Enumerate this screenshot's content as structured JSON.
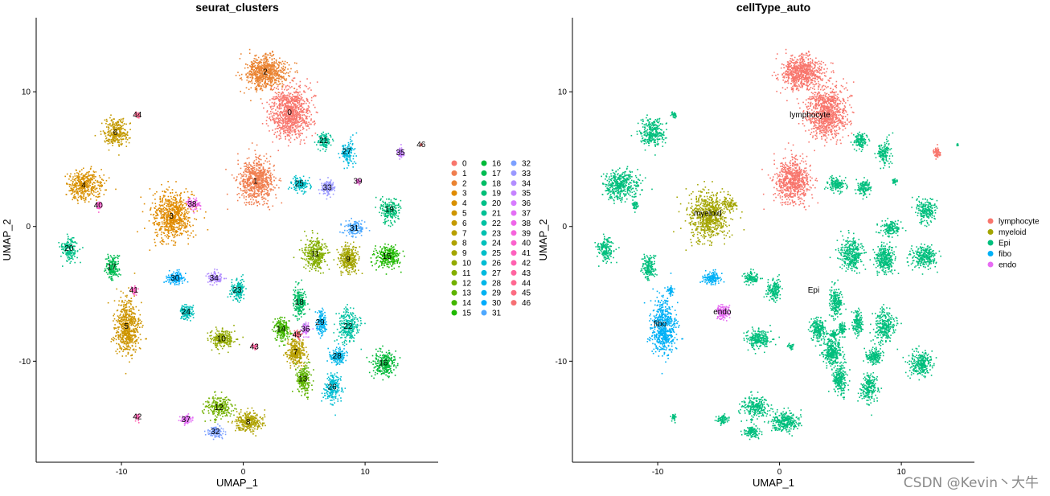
{
  "watermark": "CSDN @Kevin丶大牛",
  "chart_data": [
    {
      "type": "scatter",
      "title": "seurat_clusters",
      "xlabel": "UMAP_1",
      "ylabel": "UMAP_2",
      "xlim": [
        -17,
        16
      ],
      "ylim": [
        -17.5,
        15.5
      ],
      "xticks": [
        -10,
        0,
        10
      ],
      "yticks": [
        -10,
        0,
        10
      ],
      "grid": false,
      "legend_position": "right",
      "legend": [
        "0",
        "1",
        "2",
        "3",
        "4",
        "5",
        "6",
        "7",
        "8",
        "9",
        "10",
        "11",
        "12",
        "13",
        "14",
        "15",
        "16",
        "17",
        "18",
        "19",
        "20",
        "21",
        "22",
        "23",
        "24",
        "25",
        "26",
        "27",
        "28",
        "29",
        "30",
        "31",
        "32",
        "33",
        "34",
        "35",
        "36",
        "37",
        "38",
        "39",
        "40",
        "41",
        "42",
        "43",
        "44",
        "45",
        "46"
      ],
      "colors": [
        "#F8766D",
        "#F07E4F",
        "#EA8331",
        "#E08B00",
        "#D89000",
        "#CE9500",
        "#C49A00",
        "#B89F00",
        "#AFA200",
        "#A3A500",
        "#93AA00",
        "#84AE00",
        "#72B000",
        "#5EB300",
        "#43B600",
        "#1FB900",
        "#00BA38",
        "#00BC52",
        "#00BD65",
        "#00BF77",
        "#00C087",
        "#00C094",
        "#00C1A2",
        "#00C0AF",
        "#00C0BB",
        "#00BEC8",
        "#00BDD3",
        "#00BADE",
        "#00B6E8",
        "#00B2F1",
        "#00ACFC",
        "#4DA8FF",
        "#7CA0FF",
        "#9A99FF",
        "#B28EFF",
        "#C583FF",
        "#D77BFF",
        "#E36FF5",
        "#EE66E9",
        "#F564DC",
        "#FA62CD",
        "#FD61BE",
        "#FF61B0",
        "#FF64A0",
        "#FF6891",
        "#FC6C82",
        "#F67074"
      ],
      "clusters": [
        {
          "label": "0",
          "x": 3.8,
          "y": 8.5
        },
        {
          "label": "1",
          "x": 1.0,
          "y": 3.4
        },
        {
          "label": "2",
          "x": 1.8,
          "y": 11.5
        },
        {
          "label": "3",
          "x": -5.9,
          "y": 0.8
        },
        {
          "label": "4",
          "x": -13.1,
          "y": 3.1
        },
        {
          "label": "5",
          "x": -9.6,
          "y": -7.4
        },
        {
          "label": "6",
          "x": -10.5,
          "y": 7.0
        },
        {
          "label": "7",
          "x": 4.3,
          "y": -9.3
        },
        {
          "label": "8",
          "x": 0.4,
          "y": -14.5
        },
        {
          "label": "9",
          "x": 8.6,
          "y": -2.4
        },
        {
          "label": "10",
          "x": -1.8,
          "y": -8.3
        },
        {
          "label": "11",
          "x": 5.9,
          "y": -2.0
        },
        {
          "label": "12",
          "x": -2.0,
          "y": -13.4
        },
        {
          "label": "13",
          "x": 4.9,
          "y": -11.3
        },
        {
          "label": "14",
          "x": 3.1,
          "y": -7.6
        },
        {
          "label": "15",
          "x": 11.8,
          "y": -2.2
        },
        {
          "label": "16",
          "x": 11.5,
          "y": -10.1
        },
        {
          "label": "17",
          "x": -10.8,
          "y": -3.0
        },
        {
          "label": "18",
          "x": 4.6,
          "y": -5.6
        },
        {
          "label": "19",
          "x": 12.0,
          "y": 1.3
        },
        {
          "label": "20",
          "x": -14.3,
          "y": -1.6
        },
        {
          "label": "21",
          "x": 6.6,
          "y": 6.4
        },
        {
          "label": "22",
          "x": 8.6,
          "y": -7.4
        },
        {
          "label": "23",
          "x": -0.5,
          "y": -4.7
        },
        {
          "label": "24",
          "x": -4.7,
          "y": -6.3
        },
        {
          "label": "25",
          "x": 4.6,
          "y": 3.2
        },
        {
          "label": "26",
          "x": 7.3,
          "y": -11.9
        },
        {
          "label": "27",
          "x": 8.5,
          "y": 5.6
        },
        {
          "label": "28",
          "x": 7.7,
          "y": -9.6
        },
        {
          "label": "29",
          "x": 6.3,
          "y": -7.1
        },
        {
          "label": "30",
          "x": -5.6,
          "y": -3.8
        },
        {
          "label": "31",
          "x": 9.1,
          "y": -0.1
        },
        {
          "label": "32",
          "x": -2.3,
          "y": -15.2
        },
        {
          "label": "33",
          "x": 6.9,
          "y": 2.9
        },
        {
          "label": "34",
          "x": -2.4,
          "y": -3.8
        },
        {
          "label": "35",
          "x": 12.9,
          "y": 5.5
        },
        {
          "label": "36",
          "x": 5.1,
          "y": -7.6
        },
        {
          "label": "37",
          "x": -4.7,
          "y": -14.3
        },
        {
          "label": "38",
          "x": -4.2,
          "y": 1.7
        },
        {
          "label": "39",
          "x": 9.4,
          "y": 3.4
        },
        {
          "label": "40",
          "x": -11.9,
          "y": 1.6
        },
        {
          "label": "41",
          "x": -9.0,
          "y": -4.7
        },
        {
          "label": "42",
          "x": -8.7,
          "y": -14.1
        },
        {
          "label": "43",
          "x": 0.9,
          "y": -8.9
        },
        {
          "label": "44",
          "x": -8.7,
          "y": 8.3
        },
        {
          "label": "45",
          "x": 4.4,
          "y": -8.0
        },
        {
          "label": "46",
          "x": 14.6,
          "y": 6.1
        }
      ]
    },
    {
      "type": "scatter",
      "title": "cellType_auto",
      "xlabel": "UMAP_1",
      "ylabel": "UMAP_2",
      "xlim": [
        -17,
        16
      ],
      "ylim": [
        -17.5,
        15.5
      ],
      "xticks": [
        -10,
        0,
        10
      ],
      "yticks": [
        -10,
        0,
        10
      ],
      "grid": false,
      "legend_position": "right",
      "legend": [
        "lymphocyte",
        "myeloid",
        "Epi",
        "fibo",
        "endo"
      ],
      "colors": [
        "#F8766D",
        "#A3A500",
        "#00BF7D",
        "#00B0F6",
        "#E76BF3"
      ],
      "clusters": [
        {
          "label": "lymphocyte",
          "x": 2.5,
          "y": 8.3
        },
        {
          "label": "myeloid",
          "x": -5.9,
          "y": 1.0
        },
        {
          "label": "Epi",
          "x": 2.8,
          "y": -4.7
        },
        {
          "label": "fibo",
          "x": -9.8,
          "y": -7.2
        },
        {
          "label": "endo",
          "x": -4.7,
          "y": -6.3
        }
      ]
    }
  ]
}
